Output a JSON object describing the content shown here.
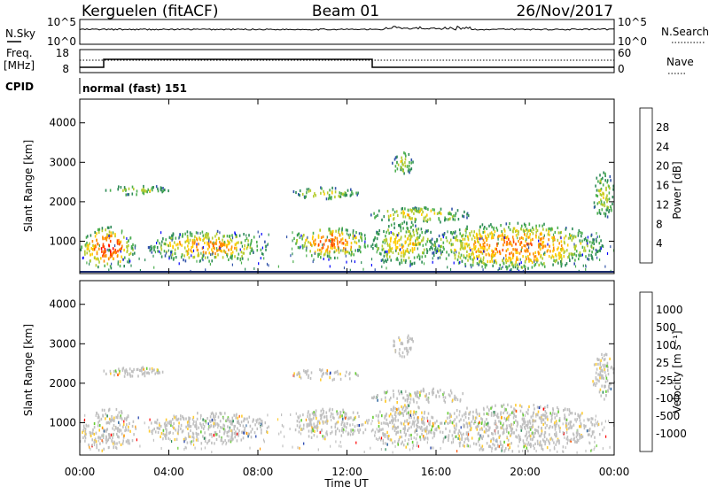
{
  "header": {
    "station": "Kerguelen (fitACF)",
    "beam": "Beam 01",
    "date": "26/Nov/2017"
  },
  "panels": {
    "nsky_label": "N.Sky",
    "nsky_ticks": [
      "10^5",
      "10^0"
    ],
    "nsearch_label": "N.Search",
    "nsearch_ticks": [
      "10^5",
      "10^0"
    ],
    "freq_label_1": "Freq.",
    "freq_label_2": "[MHz]",
    "freq_ticks": [
      "18",
      "8"
    ],
    "nave_label": "Nave",
    "nave_ticks": [
      "60",
      "0"
    ],
    "cpid_label": "CPID",
    "cpid_text": "normal (fast) 151"
  },
  "chart_data": [
    {
      "type": "heatmap",
      "name": "power",
      "ylabel": "Slant Range [km]",
      "ylim": [
        180,
        4600
      ],
      "yticks": [
        1000,
        2000,
        3000,
        4000
      ],
      "xlim_hours": [
        0,
        24
      ],
      "xticks": [
        "00:00",
        "04:00",
        "08:00",
        "12:00",
        "16:00",
        "20:00",
        "00:00"
      ],
      "colorbar": {
        "label": "Power [dB]",
        "ticks": [
          "28",
          "24",
          "20",
          "16",
          "12",
          "8",
          "4"
        ],
        "colors": [
          "#0000ff",
          "#3355aa",
          "#2e8b57",
          "#4caf50",
          "#b5cc30",
          "#ffcc00",
          "#ff8c00",
          "#ff4500",
          "#ff0000"
        ]
      },
      "regions": [
        {
          "t": [
            0.0,
            2.5
          ],
          "r": [
            300,
            1400
          ],
          "level": 0.75
        },
        {
          "t": [
            3.0,
            8.5
          ],
          "r": [
            500,
            1300
          ],
          "level": 0.6
        },
        {
          "t": [
            9.5,
            13.0
          ],
          "r": [
            600,
            1400
          ],
          "level": 0.7
        },
        {
          "t": [
            13.0,
            16.0
          ],
          "r": [
            400,
            1500
          ],
          "level": 0.5
        },
        {
          "t": [
            15.5,
            23.5
          ],
          "r": [
            300,
            1500
          ],
          "level": 0.65
        },
        {
          "t": [
            13.0,
            17.5
          ],
          "r": [
            1500,
            1900
          ],
          "level": 0.5
        },
        {
          "t": [
            9.5,
            12.5
          ],
          "r": [
            2100,
            2400
          ],
          "level": 0.4
        },
        {
          "t": [
            1.0,
            4.0
          ],
          "r": [
            2200,
            2450
          ],
          "level": 0.4
        },
        {
          "t": [
            14.0,
            15.0
          ],
          "r": [
            2700,
            3300
          ],
          "level": 0.35
        },
        {
          "t": [
            23.0,
            24.0
          ],
          "r": [
            1600,
            2800
          ],
          "level": 0.4
        }
      ]
    },
    {
      "type": "heatmap",
      "name": "velocity",
      "ylabel": "Slant Range [km]",
      "ylim": [
        180,
        4600
      ],
      "yticks": [
        1000,
        2000,
        3000,
        4000
      ],
      "xlim_hours": [
        0,
        24
      ],
      "xticks": [
        "00:00",
        "04:00",
        "08:00",
        "12:00",
        "16:00",
        "20:00",
        "00:00"
      ],
      "xlabel": "Time UT",
      "colorbar": {
        "label": "Velocity [m s⁻¹]",
        "ticks": [
          "1000",
          "500",
          "100",
          "25",
          "-25",
          "-100",
          "-500",
          "-1000"
        ],
        "colors": [
          "#ff0000",
          "#ff5500",
          "#ff9900",
          "#ffcc33",
          "#c0c0c0",
          "#c0c0c0",
          "#66cc33",
          "#2e8b57",
          "#3a6ea5",
          "#1a3aaa"
        ]
      },
      "regions": [
        {
          "t": [
            0.0,
            2.5
          ],
          "r": [
            300,
            1400
          ],
          "level": 0.5
        },
        {
          "t": [
            3.0,
            8.5
          ],
          "r": [
            500,
            1300
          ],
          "level": 0.5
        },
        {
          "t": [
            9.5,
            13.0
          ],
          "r": [
            600,
            1400
          ],
          "level": 0.5
        },
        {
          "t": [
            13.0,
            16.0
          ],
          "r": [
            400,
            1500
          ],
          "level": 0.5
        },
        {
          "t": [
            15.5,
            23.5
          ],
          "r": [
            300,
            1500
          ],
          "level": 0.5
        },
        {
          "t": [
            13.0,
            17.5
          ],
          "r": [
            1500,
            1900
          ],
          "level": 0.5
        },
        {
          "t": [
            9.5,
            12.5
          ],
          "r": [
            2100,
            2400
          ],
          "level": 0.5
        },
        {
          "t": [
            1.0,
            4.0
          ],
          "r": [
            2200,
            2450
          ],
          "level": 0.5
        },
        {
          "t": [
            14.0,
            15.0
          ],
          "r": [
            2700,
            3300
          ],
          "level": 0.5
        },
        {
          "t": [
            23.0,
            24.0
          ],
          "r": [
            1600,
            2800
          ],
          "level": 0.5
        }
      ]
    }
  ]
}
